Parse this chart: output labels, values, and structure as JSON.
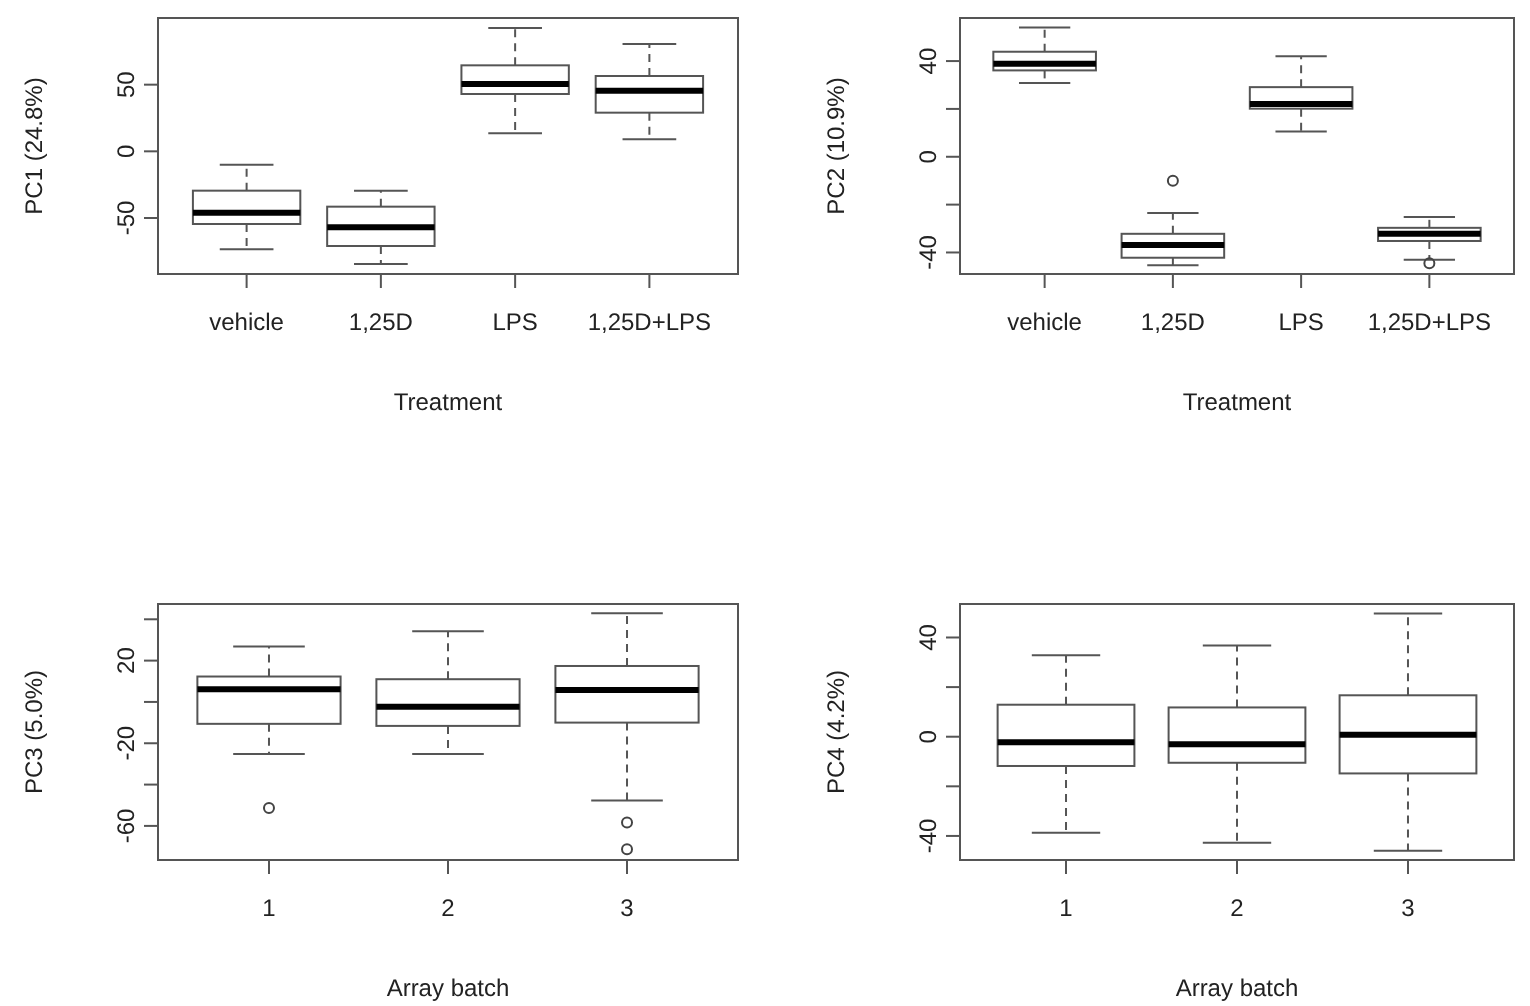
{
  "chart_data": [
    {
      "type": "box",
      "xlabel": "Treatment",
      "ylabel": "PC1 (24.8%)",
      "categories": [
        "vehicle",
        "1,25D",
        "LPS",
        "1,25D+LPS"
      ],
      "ylim": [
        -92,
        100
      ],
      "yticks": [
        -50,
        0,
        50
      ],
      "boxes": [
        {
          "low": -73.5,
          "q1": -54.5,
          "median": -46,
          "q3": -29.5,
          "high": -10
        },
        {
          "low": -84.5,
          "q1": -71,
          "median": -57,
          "q3": -41.5,
          "high": -29.5
        },
        {
          "low": 13.5,
          "q1": 43,
          "median": 50.5,
          "q3": 64.5,
          "high": 92.5
        },
        {
          "low": 9,
          "q1": 29,
          "median": 45.5,
          "q3": 56.5,
          "high": 80.5
        }
      ]
    },
    {
      "type": "box",
      "xlabel": "Treatment",
      "ylabel": "PC2 (10.9%)",
      "categories": [
        "vehicle",
        "1,25D",
        "LPS",
        "1,25D+LPS"
      ],
      "ylim": [
        -49,
        58
      ],
      "yticks": [
        -40,
        {
          "value": -20,
          "label": null
        },
        0,
        {
          "value": 20,
          "label": null
        },
        40
      ],
      "boxes": [
        {
          "low": 30.8,
          "q1": 36.1,
          "median": 38.9,
          "q3": 43.9,
          "high": 54
        },
        {
          "low": -45.3,
          "q1": -42.2,
          "median": -36.9,
          "q3": -32.2,
          "high": -23.5,
          "outliers": [
            -10
          ]
        },
        {
          "low": 10.6,
          "q1": 20.1,
          "median": 22.1,
          "q3": 29.1,
          "high": 42
        },
        {
          "low": -43,
          "q1": -35.2,
          "median": -32.2,
          "q3": -29.7,
          "high": -25.2,
          "outliers": [
            -44.5
          ]
        }
      ]
    },
    {
      "type": "box",
      "xlabel": "Array batch",
      "ylabel": "PC3 (5.0%)",
      "categories": [
        "1",
        "2",
        "3"
      ],
      "ylim": [
        -76.5,
        47.4
      ],
      "yticks": [
        -60,
        {
          "value": -40,
          "label": null
        },
        -20,
        {
          "value": 0,
          "label": null
        },
        20,
        {
          "value": 40,
          "label": null
        }
      ],
      "boxes": [
        {
          "low": -25.2,
          "q1": -10.6,
          "median": 6.1,
          "q3": 12.3,
          "high": 26.8,
          "outliers": [
            -51.3
          ]
        },
        {
          "low": -25.2,
          "q1": -11.6,
          "median": -2.3,
          "q3": 11,
          "high": 34.2
        },
        {
          "low": -47.7,
          "q1": -10,
          "median": 5.8,
          "q3": 17.4,
          "high": 42.9,
          "outliers": [
            -58.4,
            -71.3
          ]
        }
      ]
    },
    {
      "type": "box",
      "xlabel": "Array batch",
      "ylabel": "PC4 (4.2%)",
      "categories": [
        "1",
        "2",
        "3"
      ],
      "ylim": [
        -49.7,
        53.5
      ],
      "yticks": [
        -40,
        {
          "value": -20,
          "label": null
        },
        0,
        {
          "value": 20,
          "label": null
        },
        40
      ],
      "boxes": [
        {
          "low": -38.7,
          "q1": -11.8,
          "median": -2.2,
          "q3": 12.9,
          "high": 32.8
        },
        {
          "low": -42.7,
          "q1": -10.5,
          "median": -3,
          "q3": 11.8,
          "high": 36.8
        },
        {
          "low": -46,
          "q1": -14.8,
          "median": 0.8,
          "q3": 16.7,
          "high": 49.7
        }
      ]
    }
  ]
}
